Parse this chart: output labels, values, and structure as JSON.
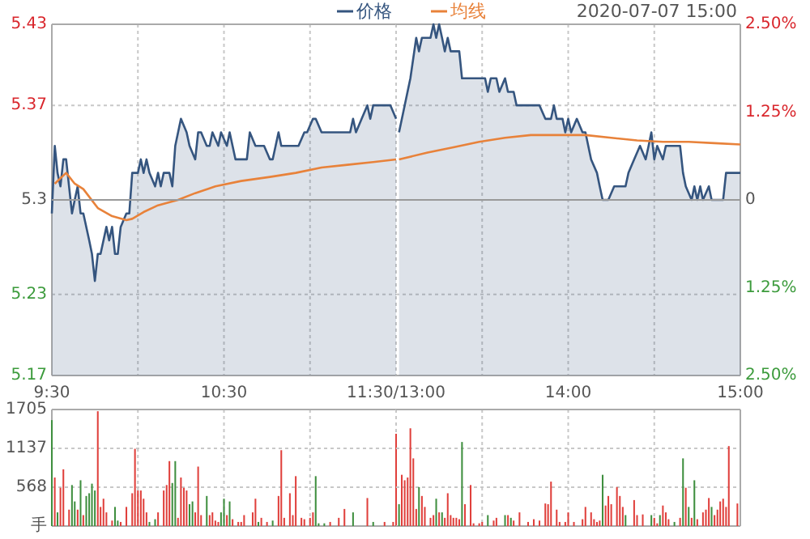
{
  "chart_data": [
    {
      "type": "area",
      "legend": "top",
      "grid": true,
      "xlim": [
        9.5,
        11.5
      ],
      "xticks": [
        {
          "value": 9.5,
          "label": "9:30"
        },
        {
          "value": 10,
          "label": null
        },
        {
          "value": 10.5,
          "label": "10:30"
        },
        {
          "value": 11,
          "label": null
        },
        {
          "value": 11.5,
          "label": "11:30/13:00"
        }
      ],
      "ylim": [
        5.17,
        5.43
      ],
      "yticks": [
        5.17,
        5.23,
        5.3,
        5.37,
        5.43
      ],
      "ref_lines": [
        {
          "axis": "y",
          "value": 5.3,
          "color": "#999999"
        }
      ],
      "series": [
        {
          "name": "价格",
          "color": "#35557f",
          "x": [
            9.5,
            9.517,
            9.533,
            9.55,
            9.567,
            9.583,
            9.617,
            9.633,
            9.65,
            9.667,
            9.683,
            9.717,
            9.733,
            9.75,
            9.767,
            9.783,
            9.817,
            9.833,
            9.85,
            9.867,
            9.883,
            9.9,
            9.933,
            9.95,
            9.967,
            10,
            10.017,
            10.033,
            10.05,
            10.067,
            10.1,
            10.117,
            10.133,
            10.15,
            10.183,
            10.2,
            10.217,
            10.25,
            10.283,
            10.3,
            10.333,
            10.35,
            10.367,
            10.4,
            10.417,
            10.433,
            10.467,
            10.483,
            10.517,
            10.533,
            10.55,
            10.567,
            10.6,
            10.617,
            10.633,
            10.65,
            10.683,
            10.7,
            10.733,
            10.767,
            10.783,
            10.8,
            10.817,
            10.833,
            10.883,
            10.933,
            10.967,
            10.983,
            11.017,
            11.033,
            11.067,
            11.117,
            11.183,
            11.233,
            11.25,
            11.267,
            11.3,
            11.333,
            11.35,
            11.367,
            11.383,
            11.4,
            11.433,
            11.467,
            11.5
          ],
          "values": [
            5.29,
            5.34,
            5.32,
            5.31,
            5.33,
            5.33,
            5.29,
            5.3,
            5.31,
            5.29,
            5.29,
            5.27,
            5.26,
            5.24,
            5.26,
            5.26,
            5.28,
            5.27,
            5.28,
            5.26,
            5.26,
            5.28,
            5.29,
            5.29,
            5.32,
            5.32,
            5.33,
            5.32,
            5.33,
            5.32,
            5.31,
            5.32,
            5.31,
            5.32,
            5.32,
            5.31,
            5.34,
            5.36,
            5.35,
            5.34,
            5.33,
            5.35,
            5.35,
            5.34,
            5.34,
            5.35,
            5.34,
            5.35,
            5.34,
            5.35,
            5.34,
            5.33,
            5.33,
            5.33,
            5.33,
            5.35,
            5.34,
            5.34,
            5.34,
            5.33,
            5.33,
            5.34,
            5.35,
            5.34,
            5.34,
            5.34,
            5.35,
            5.35,
            5.36,
            5.36,
            5.35,
            5.35,
            5.35,
            5.35,
            5.36,
            5.35,
            5.36,
            5.37,
            5.36,
            5.37,
            5.37,
            5.37,
            5.37,
            5.37,
            5.36
          ]
        },
        {
          "name": "均线",
          "type": "line",
          "color": "#e8823a",
          "x": [
            9.517,
            9.583,
            9.633,
            9.683,
            9.767,
            9.85,
            9.933,
            9.967,
            10.033,
            10.117,
            10.233,
            10.333,
            10.45,
            10.6,
            10.767,
            10.917,
            11.067,
            11.217,
            11.367,
            11.5
          ],
          "values": [
            5.312,
            5.32,
            5.312,
            5.308,
            5.294,
            5.288,
            5.285,
            5.286,
            5.291,
            5.296,
            5.3,
            5.305,
            5.31,
            5.314,
            5.317,
            5.32,
            5.324,
            5.326,
            5.328,
            5.33
          ]
        }
      ]
    },
    {
      "type": "area",
      "annotations": [
        "2020-07-07 15:00"
      ],
      "grid": true,
      "tick_labels": "x",
      "xlim": [
        13,
        15
      ],
      "xticks": [
        {
          "value": 13.5,
          "label": null
        },
        {
          "value": 14,
          "label": "14:00"
        },
        {
          "value": 14.5,
          "label": null
        },
        {
          "value": 15,
          "label": "15:00"
        }
      ],
      "ylim": [
        5.17,
        5.43
      ],
      "yticks": [
        5.17,
        5.23,
        5.3,
        5.37,
        5.43
      ],
      "y2lim": [
        -2.5,
        2.5
      ],
      "y2ticks": [
        {
          "value": -2.5,
          "label": "2.50%"
        },
        {
          "value": -1.25,
          "label": "1.25%"
        },
        {
          "value": 0,
          "label": "0"
        },
        {
          "value": 1.25,
          "label": "1.25%"
        },
        {
          "value": 2.5,
          "label": "2.50%"
        }
      ],
      "ref_lines": [
        {
          "axis": "y",
          "value": 5.3,
          "color": "#999999"
        }
      ],
      "series": [
        {
          "color": "#35557f",
          "x": [
            13.017,
            13.05,
            13.083,
            13.117,
            13.133,
            13.15,
            13.183,
            13.2,
            13.217,
            13.233,
            13.25,
            13.267,
            13.283,
            13.3,
            13.317,
            13.333,
            13.367,
            13.383,
            13.45,
            13.517,
            13.533,
            13.55,
            13.583,
            13.6,
            13.633,
            13.65,
            13.683,
            13.7,
            13.767,
            13.833,
            13.867,
            13.9,
            13.917,
            13.933,
            13.967,
            13.983,
            14,
            14.017,
            14.05,
            14.083,
            14.1,
            14.133,
            14.167,
            14.183,
            14.2,
            14.233,
            14.267,
            14.333,
            14.35,
            14.383,
            14.417,
            14.45,
            14.467,
            14.483,
            14.5,
            14.517,
            14.55,
            14.567,
            14.65,
            14.667,
            14.683,
            14.717,
            14.733,
            14.75,
            14.767,
            14.783,
            14.817,
            14.833,
            14.9,
            14.917,
            15
          ],
          "values": [
            5.35,
            5.37,
            5.39,
            5.42,
            5.41,
            5.42,
            5.42,
            5.42,
            5.43,
            5.42,
            5.43,
            5.42,
            5.41,
            5.42,
            5.41,
            5.41,
            5.41,
            5.39,
            5.39,
            5.39,
            5.38,
            5.39,
            5.39,
            5.38,
            5.39,
            5.38,
            5.38,
            5.37,
            5.37,
            5.37,
            5.36,
            5.36,
            5.37,
            5.36,
            5.36,
            5.35,
            5.36,
            5.35,
            5.36,
            5.35,
            5.35,
            5.33,
            5.32,
            5.31,
            5.3,
            5.3,
            5.31,
            5.31,
            5.32,
            5.33,
            5.34,
            5.33,
            5.34,
            5.35,
            5.33,
            5.34,
            5.33,
            5.34,
            5.34,
            5.32,
            5.31,
            5.3,
            5.31,
            5.3,
            5.31,
            5.3,
            5.31,
            5.3,
            5.3,
            5.32,
            5.32
          ]
        },
        {
          "type": "line",
          "color": "#e8823a",
          "x": [
            13.017,
            13.183,
            13.333,
            13.483,
            13.633,
            13.783,
            13.933,
            14.1,
            14.25,
            14.4,
            14.55,
            14.7,
            14.85,
            15
          ],
          "values": [
            5.33,
            5.335,
            5.339,
            5.343,
            5.346,
            5.348,
            5.348,
            5.348,
            5.346,
            5.344,
            5.343,
            5.343,
            5.342,
            5.341
          ]
        }
      ]
    },
    {
      "type": "bar",
      "grid": true,
      "tick_labels": "y",
      "xlim": [
        9.5,
        11.5
      ],
      "xticks": [
        {
          "value": 10,
          "label": null
        },
        {
          "value": 10.5,
          "label": null
        },
        {
          "value": 11,
          "label": null
        }
      ],
      "ylim": [
        0,
        1705
      ],
      "yticks": [
        {
          "value": 0,
          "label": "手"
        },
        568,
        1137,
        1705
      ],
      "x": [
        9.5,
        9.517,
        9.533,
        9.55,
        9.567,
        9.6,
        9.617,
        9.633,
        9.65,
        9.667,
        9.683,
        9.7,
        9.717,
        9.733,
        9.75,
        9.767,
        9.783,
        9.8,
        9.817,
        9.85,
        9.867,
        9.883,
        9.9,
        9.933,
        9.967,
        9.983,
        10,
        10.017,
        10.033,
        10.05,
        10.067,
        10.1,
        10.117,
        10.15,
        10.167,
        10.183,
        10.2,
        10.217,
        10.233,
        10.25,
        10.267,
        10.283,
        10.3,
        10.317,
        10.333,
        10.35,
        10.367,
        10.4,
        10.417,
        10.433,
        10.45,
        10.467,
        10.483,
        10.5,
        10.517,
        10.533,
        10.55,
        10.583,
        10.6,
        10.617,
        10.667,
        10.683,
        10.7,
        10.717,
        10.75,
        10.783,
        10.817,
        10.833,
        10.85,
        10.883,
        10.9,
        10.917,
        10.95,
        10.967,
        11,
        11.017,
        11.033,
        11.05,
        11.083,
        11.117,
        11.167,
        11.2,
        11.25,
        11.333,
        11.367,
        11.433,
        11.483,
        11.5
      ],
      "values": [
        1550,
        710,
        200,
        560,
        830,
        240,
        600,
        360,
        240,
        670,
        160,
        440,
        480,
        620,
        520,
        1680,
        280,
        400,
        200,
        80,
        280,
        80,
        60,
        280,
        480,
        1130,
        520,
        520,
        400,
        200,
        60,
        100,
        200,
        520,
        600,
        950,
        630,
        950,
        120,
        710,
        560,
        520,
        320,
        360,
        200,
        870,
        160,
        440,
        160,
        200,
        80,
        60,
        200,
        400,
        160,
        360,
        100,
        60,
        60,
        160,
        200,
        400,
        60,
        120,
        60,
        80,
        440,
        1110,
        120,
        480,
        160,
        730,
        120,
        100,
        120,
        200,
        730,
        40,
        40,
        60,
        120,
        250,
        200,
        410,
        60,
        60,
        60,
        1350
      ],
      "colors": [
        "#3f8f3f",
        "#e0403c",
        "#3f8f3f",
        "#e0403c",
        "#e0403c",
        "#e0403c",
        "#3f8f3f",
        "#3f8f3f",
        "#e0403c",
        "#3f8f3f",
        "#e0403c",
        "#3f8f3f",
        "#3f8f3f",
        "#3f8f3f",
        "#3f8f3f",
        "#e0403c",
        "#e0403c",
        "#e0403c",
        "#e0403c",
        "#e0403c",
        "#3f8f3f",
        "#3f8f3f",
        "#e0403c",
        "#e0403c",
        "#e0403c",
        "#e0403c",
        "#e0403c",
        "#e0403c",
        "#e0403c",
        "#e0403c",
        "#3f8f3f",
        "#3f8f3f",
        "#e0403c",
        "#e0403c",
        "#e0403c",
        "#e0403c",
        "#3f8f3f",
        "#3f8f3f",
        "#e0403c",
        "#e0403c",
        "#e0403c",
        "#e0403c",
        "#3f8f3f",
        "#3f8f3f",
        "#e0403c",
        "#e0403c",
        "#e0403c",
        "#3f8f3f",
        "#e0403c",
        "#e0403c",
        "#e0403c",
        "#e0403c",
        "#3f8f3f",
        "#3f8f3f",
        "#e0403c",
        "#3f8f3f",
        "#e0403c",
        "#e0403c",
        "#e0403c",
        "#e0403c",
        "#e0403c",
        "#e0403c",
        "#3f8f3f",
        "#e0403c",
        "#e0403c",
        "#3f8f3f",
        "#e0403c",
        "#e0403c",
        "#e0403c",
        "#e0403c",
        "#e0403c",
        "#e0403c",
        "#e0403c",
        "#e0403c",
        "#e0403c",
        "#e0403c",
        "#3f8f3f",
        "#3f8f3f",
        "#3f8f3f",
        "#e0403c",
        "#e0403c",
        "#e0403c",
        "#3f8f3f",
        "#e0403c",
        "#3f8f3f",
        "#e0403c",
        "#e0403c",
        "#e0403c"
      ]
    },
    {
      "type": "bar",
      "grid": true,
      "tick_labels": false,
      "xlim": [
        13,
        15
      ],
      "xticks": [
        {
          "value": 13.5,
          "label": null
        },
        {
          "value": 14,
          "label": null
        },
        {
          "value": 14.5,
          "label": null
        }
      ],
      "ylim": [
        0,
        1705
      ],
      "yticks": [
        0,
        568,
        1137,
        1705
      ],
      "x": [
        13.017,
        13.033,
        13.05,
        13.067,
        13.083,
        13.1,
        13.117,
        13.133,
        13.15,
        13.167,
        13.2,
        13.217,
        13.233,
        13.25,
        13.267,
        13.283,
        13.3,
        13.317,
        13.333,
        13.35,
        13.367,
        13.383,
        13.4,
        13.433,
        13.45,
        13.483,
        13.5,
        13.533,
        13.567,
        13.583,
        13.633,
        13.65,
        13.667,
        13.683,
        13.717,
        13.767,
        13.8,
        13.833,
        13.867,
        13.883,
        13.9,
        13.933,
        13.95,
        13.983,
        14,
        14.033,
        14.083,
        14.1,
        14.133,
        14.15,
        14.167,
        14.183,
        14.2,
        14.217,
        14.233,
        14.25,
        14.283,
        14.3,
        14.317,
        14.333,
        14.383,
        14.4,
        14.433,
        14.483,
        14.5,
        14.517,
        14.533,
        14.55,
        14.567,
        14.583,
        14.617,
        14.65,
        14.667,
        14.683,
        14.7,
        14.717,
        14.733,
        14.75,
        14.783,
        14.8,
        14.817,
        14.833,
        14.85,
        14.867,
        14.883,
        14.9,
        14.917,
        14.933,
        14.983
      ],
      "values": [
        320,
        750,
        670,
        710,
        1430,
        990,
        250,
        570,
        440,
        280,
        120,
        160,
        400,
        200,
        200,
        120,
        480,
        160,
        120,
        120,
        100,
        1230,
        320,
        600,
        40,
        40,
        60,
        160,
        80,
        120,
        160,
        160,
        120,
        80,
        200,
        60,
        100,
        80,
        330,
        320,
        650,
        240,
        60,
        60,
        200,
        60,
        100,
        280,
        200,
        100,
        60,
        80,
        750,
        300,
        440,
        320,
        570,
        440,
        280,
        160,
        380,
        160,
        170,
        160,
        120,
        40,
        160,
        300,
        200,
        100,
        60,
        120,
        990,
        560,
        280,
        120,
        670,
        100,
        200,
        240,
        410,
        280,
        160,
        240,
        360,
        400,
        280,
        1170,
        330
      ],
      "colors": [
        "#3f8f3f",
        "#e0403c",
        "#e0403c",
        "#e0403c",
        "#e0403c",
        "#e0403c",
        "#e0403c",
        "#3f8f3f",
        "#e0403c",
        "#e0403c",
        "#e0403c",
        "#e0403c",
        "#3f8f3f",
        "#e0403c",
        "#3f8f3f",
        "#e0403c",
        "#e0403c",
        "#e0403c",
        "#e0403c",
        "#e0403c",
        "#e0403c",
        "#3f8f3f",
        "#e0403c",
        "#e0403c",
        "#e0403c",
        "#e0403c",
        "#e0403c",
        "#3f8f3f",
        "#e0403c",
        "#e0403c",
        "#3f8f3f",
        "#e0403c",
        "#3f8f3f",
        "#e0403c",
        "#e0403c",
        "#e0403c",
        "#e0403c",
        "#e0403c",
        "#e0403c",
        "#e0403c",
        "#e0403c",
        "#e0403c",
        "#e0403c",
        "#e0403c",
        "#e0403c",
        "#e0403c",
        "#e0403c",
        "#e0403c",
        "#e0403c",
        "#e0403c",
        "#e0403c",
        "#e0403c",
        "#3f8f3f",
        "#e0403c",
        "#e0403c",
        "#e0403c",
        "#e0403c",
        "#e0403c",
        "#e0403c",
        "#3f8f3f",
        "#e0403c",
        "#e0403c",
        "#e0403c",
        "#3f8f3f",
        "#e0403c",
        "#e0403c",
        "#3f8f3f",
        "#e0403c",
        "#e0403c",
        "#e0403c",
        "#3f8f3f",
        "#e0403c",
        "#3f8f3f",
        "#e0403c",
        "#3f8f3f",
        "#e0403c",
        "#3f8f3f",
        "#e0403c",
        "#e0403c",
        "#e0403c",
        "#e0403c",
        "#3f8f3f",
        "#e0403c",
        "#e0403c",
        "#e0403c",
        "#e0403c",
        "#e0403c",
        "#e0403c",
        "#e0403c"
      ]
    }
  ]
}
